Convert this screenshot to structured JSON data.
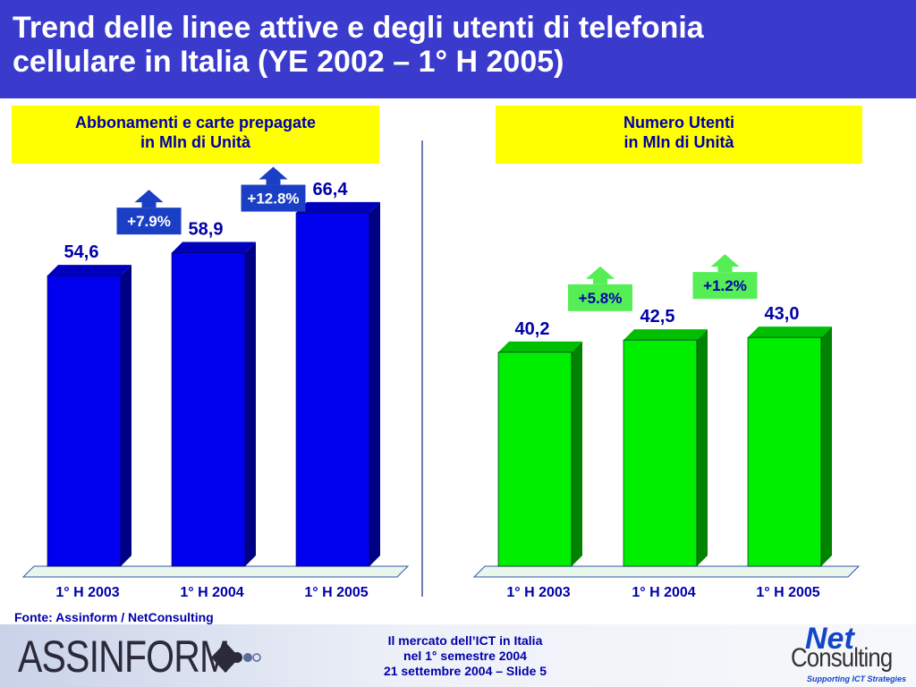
{
  "header": {
    "title_line1": "Trend delle linee attive e degli utenti di telefonia",
    "title_line2": "cellulare in Italia (YE 2002 – 1° H 2005)"
  },
  "footer": {
    "source": "Fonte: Assinform / NetConsulting",
    "logo_left": "ASSINFORM",
    "slide_line1": "Il mercato dell’ICT in Italia",
    "slide_line2": "nel 1° semestre 2004",
    "slide_line3": "21 settembre 2004 – Slide 5",
    "logo_right_top": "Net",
    "logo_right_bottom": "Consulting",
    "logo_right_tag": "Supporting ICT Strategies"
  },
  "chart_data": [
    {
      "type": "bar",
      "title_line1": "Abbonamenti e carte prepagate",
      "title_line2": "in Mln di Unità",
      "categories": [
        "1° H 2003",
        "1° H 2004",
        "1° H 2005"
      ],
      "values": [
        54.6,
        58.9,
        66.4
      ],
      "value_labels": [
        "54,6",
        "58,9",
        "66,4"
      ],
      "growth_labels": [
        "+7.9%",
        "+12.8%"
      ],
      "ylim": [
        0,
        70
      ],
      "color": "#0000ee",
      "growth_color": "#1a3fc4",
      "grid": false
    },
    {
      "type": "bar",
      "title_line1": "Numero Utenti",
      "title_line2": "in Mln di Unità",
      "categories": [
        "1° H 2003",
        "1° H 2004",
        "1° H 2005"
      ],
      "values": [
        40.2,
        42.5,
        43.0
      ],
      "value_labels": [
        "40,2",
        "42,5",
        "43,0"
      ],
      "growth_labels": [
        "+5.8%",
        "+1.2%"
      ],
      "ylim": [
        0,
        70
      ],
      "color": "#00ee00",
      "growth_color": "#55ee55",
      "grid": false
    }
  ]
}
